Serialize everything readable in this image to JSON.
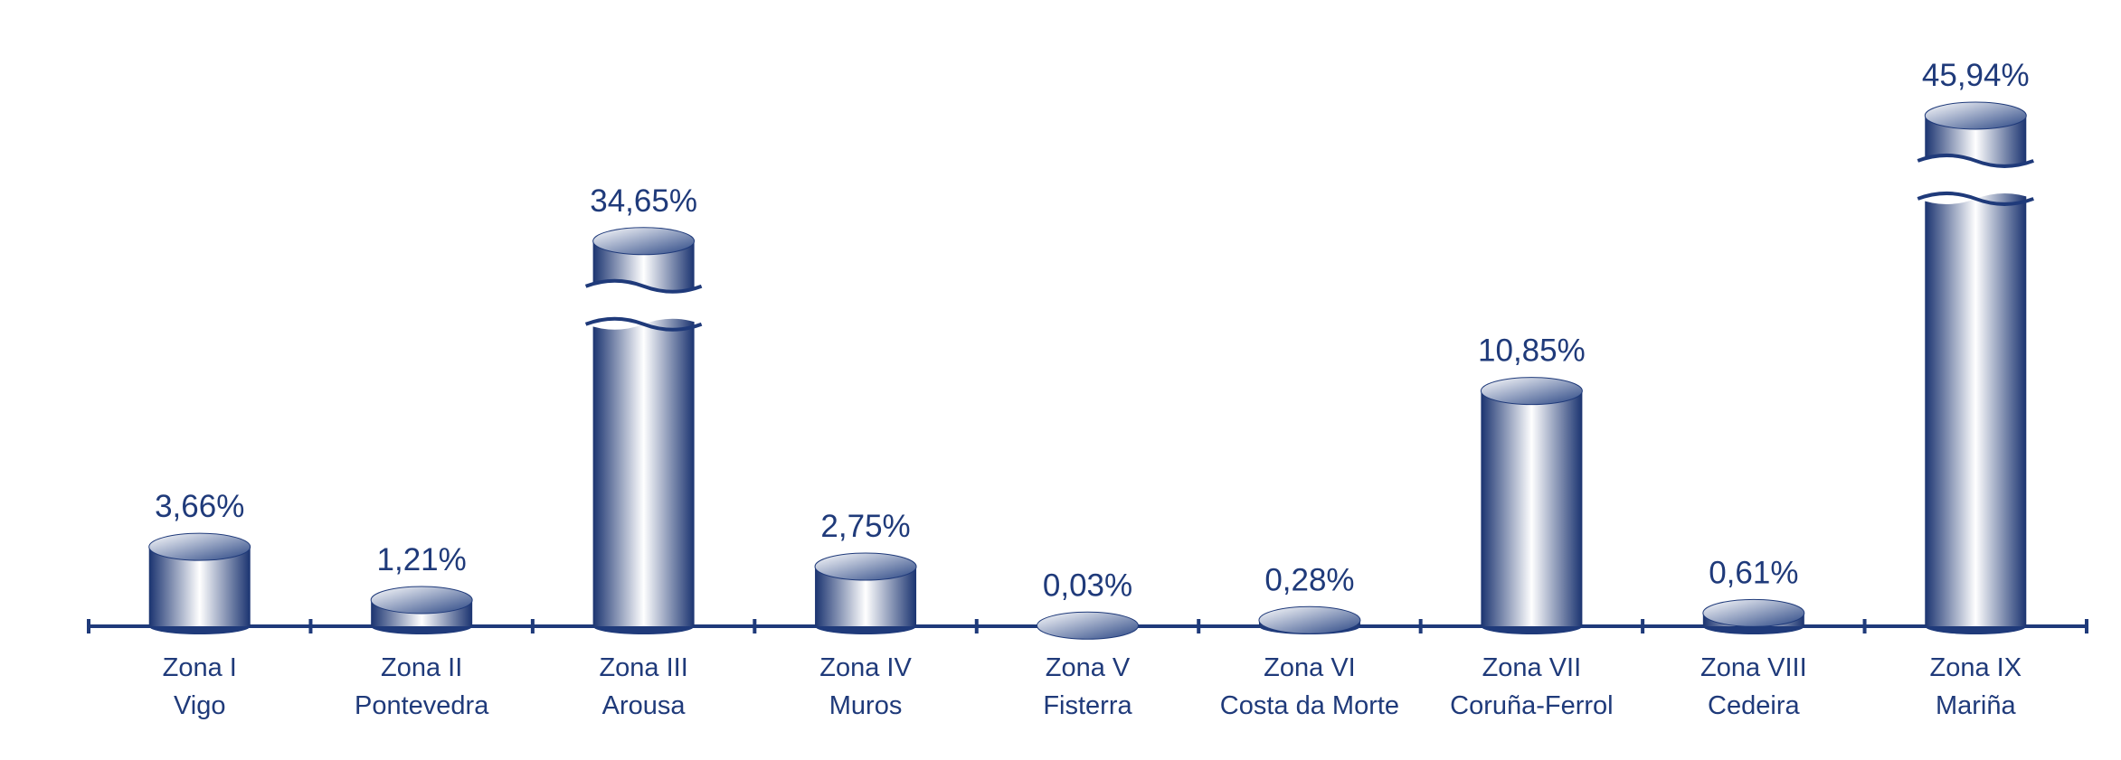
{
  "chart_data": {
    "type": "bar",
    "categories": [
      [
        "Zona I",
        "Vigo"
      ],
      [
        "Zona II",
        "Pontevedra"
      ],
      [
        "Zona III",
        "Arousa"
      ],
      [
        "Zona IV",
        "Muros"
      ],
      [
        "Zona V",
        "Fisterra"
      ],
      [
        "Zona VI",
        "Costa da Morte"
      ],
      [
        "Zona VII",
        "Coruña-Ferrol"
      ],
      [
        "Zona VIII",
        "Cedeira"
      ],
      [
        "Zona IX",
        "Mariña"
      ]
    ],
    "values": [
      3.66,
      1.21,
      34.65,
      2.75,
      0.03,
      0.28,
      10.85,
      0.61,
      45.94
    ],
    "value_labels": [
      "3,66%",
      "1,21%",
      "34,65%",
      "2,75%",
      "0,03%",
      "0,28%",
      "10,85%",
      "0,61%",
      "45,94%"
    ],
    "color": "#1f3a7a"
  }
}
